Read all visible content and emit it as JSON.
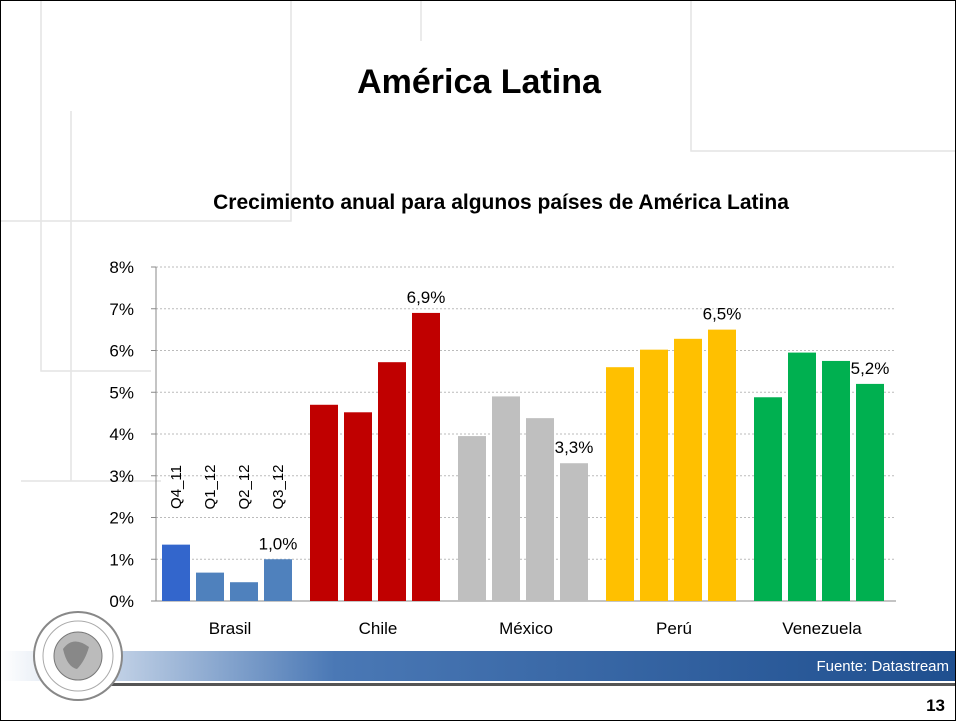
{
  "header": {
    "title": "América Latina"
  },
  "chart_data": {
    "type": "bar",
    "title": "Crecimiento anual para algunos países de América Latina",
    "categories": [
      "Brasil",
      "Chile",
      "México",
      "Perú",
      "Venezuela"
    ],
    "series": [
      {
        "name": "Q4_11",
        "colors": [
          "#3366cc",
          "#c00000",
          "#bfbfbf",
          "#ffc000",
          "#00b050"
        ],
        "values": [
          1.35,
          4.7,
          3.95,
          5.6,
          4.88
        ]
      },
      {
        "name": "Q1_12",
        "colors": [
          "#4f81bd",
          "#c00000",
          "#bfbfbf",
          "#ffc000",
          "#00b050"
        ],
        "values": [
          0.68,
          4.52,
          4.9,
          6.02,
          5.95
        ]
      },
      {
        "name": "Q2_12",
        "colors": [
          "#4f81bd",
          "#c00000",
          "#bfbfbf",
          "#ffc000",
          "#00b050"
        ],
        "values": [
          0.45,
          5.72,
          4.38,
          6.28,
          5.75
        ]
      },
      {
        "name": "Q3_12",
        "colors": [
          "#4f81bd",
          "#c00000",
          "#bfbfbf",
          "#ffc000",
          "#00b050"
        ],
        "values": [
          1.0,
          6.9,
          3.3,
          6.5,
          5.2
        ],
        "value_labels": [
          "1,0%",
          "6,9%",
          "3,3%",
          "6,5%",
          "5,2%"
        ]
      }
    ],
    "ylim": [
      0,
      8
    ],
    "yticks": [
      {
        "value": 0,
        "label": "0%"
      },
      {
        "value": 1,
        "label": "1%"
      },
      {
        "value": 2,
        "label": "2%"
      },
      {
        "value": 3,
        "label": "3%"
      },
      {
        "value": 4,
        "label": "4%"
      },
      {
        "value": 5,
        "label": "5%"
      },
      {
        "value": 6,
        "label": "6%"
      },
      {
        "value": 7,
        "label": "7%"
      },
      {
        "value": 8,
        "label": "8%"
      }
    ],
    "grid": true
  },
  "footer": {
    "source": "Fuente: Datastream",
    "page": "13"
  }
}
